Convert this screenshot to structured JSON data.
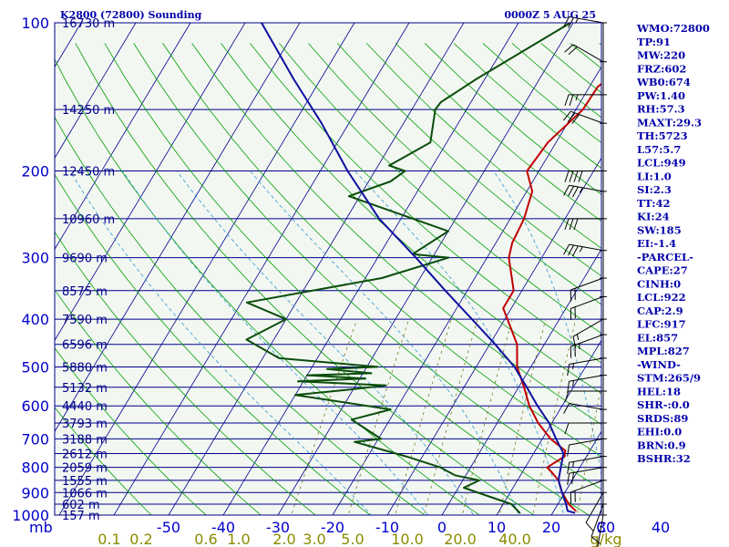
{
  "chart_data": {
    "type": "line",
    "title": "K2800 (72800) Sounding",
    "valid_time": "0000Z  5 AUG 25",
    "y_axis_unit": "mb",
    "pressure_ticks": [
      100,
      200,
      300,
      400,
      500,
      600,
      700,
      800,
      900,
      1000
    ],
    "temperature_ticks": [
      "-50",
      "-40",
      "-30",
      "-20",
      "-10",
      "0",
      "10",
      "20",
      "30",
      "40",
      "C"
    ],
    "mixing_ratio_labels": [
      "0.1",
      "0.2",
      "0.6",
      "1.0",
      "2.0",
      "3.0",
      "5.0",
      "10.0",
      "20.0",
      "40.0",
      "g/kg"
    ],
    "height_levels": [
      {
        "p": 100,
        "h": "16730 m"
      },
      {
        "p": 150,
        "h": "14250 m"
      },
      {
        "p": 200,
        "h": "12450 m"
      },
      {
        "p": 250,
        "h": "10960 m"
      },
      {
        "p": 300,
        "h": "9690 m"
      },
      {
        "p": 350,
        "h": "8575 m"
      },
      {
        "p": 400,
        "h": "7590 m"
      },
      {
        "p": 450,
        "h": "6596 m"
      },
      {
        "p": 500,
        "h": "5880 m"
      },
      {
        "p": 550,
        "h": "5132 m"
      },
      {
        "p": 600,
        "h": "4440 m"
      },
      {
        "p": 650,
        "h": "3793 m"
      },
      {
        "p": 700,
        "h": "3188 m"
      },
      {
        "p": 750,
        "h": "2612 m"
      },
      {
        "p": 800,
        "h": "2059 m"
      },
      {
        "p": 850,
        "h": "1555 m"
      },
      {
        "p": 900,
        "h": "1066 m"
      },
      {
        "p": 950,
        "h": "602 m"
      },
      {
        "p": 1000,
        "h": "157 m"
      }
    ],
    "series": [
      {
        "name": "Temperature",
        "color": "#c00000",
        "points": [
          [
            100,
            -9.5
          ],
          [
            105,
            -10.3
          ],
          [
            115,
            -13.0
          ],
          [
            125,
            -16.5
          ],
          [
            135,
            -18.5
          ],
          [
            150,
            -18.7
          ],
          [
            175,
            -21.5
          ],
          [
            200,
            -22.2
          ],
          [
            220,
            -19.0
          ],
          [
            250,
            -17.5
          ],
          [
            280,
            -17.0
          ],
          [
            300,
            -16.0
          ],
          [
            350,
            -11.5
          ],
          [
            380,
            -11.5
          ],
          [
            400,
            -9.5
          ],
          [
            450,
            -5.0
          ],
          [
            500,
            -2.5
          ],
          [
            550,
            1.0
          ],
          [
            600,
            4.0
          ],
          [
            650,
            7.5
          ],
          [
            700,
            11.5
          ],
          [
            740,
            15.5
          ],
          [
            760,
            16.0
          ],
          [
            800,
            14.0
          ],
          [
            820,
            15.5
          ],
          [
            850,
            17.5
          ],
          [
            900,
            19.5
          ],
          [
            950,
            22.0
          ],
          [
            980,
            24.0
          ]
        ]
      },
      {
        "name": "Dewpoint",
        "color": "#0b4d0b",
        "points": [
          [
            100,
            -30.5
          ],
          [
            130,
            -41.5
          ],
          [
            145,
            -45.5
          ],
          [
            150,
            -45.7
          ],
          [
            175,
            -43.0
          ],
          [
            195,
            -48.0
          ],
          [
            200,
            -44.5
          ],
          [
            210,
            -46.0
          ],
          [
            225,
            -52.0
          ],
          [
            265,
            -30.0
          ],
          [
            295,
            -34.0
          ],
          [
            300,
            -27.0
          ],
          [
            330,
            -37.0
          ],
          [
            370,
            -59.0
          ],
          [
            400,
            -50.0
          ],
          [
            440,
            -55.0
          ],
          [
            480,
            -47.0
          ],
          [
            500,
            -28.0
          ],
          [
            505,
            -37.0
          ],
          [
            515,
            -28.5
          ],
          [
            520,
            -40.0
          ],
          [
            528,
            -29.0
          ],
          [
            535,
            -41.0
          ],
          [
            545,
            -24.5
          ],
          [
            555,
            -30.0
          ],
          [
            570,
            -40.0
          ],
          [
            610,
            -21.0
          ],
          [
            640,
            -27.0
          ],
          [
            700,
            -19.5
          ],
          [
            710,
            -24.0
          ],
          [
            760,
            -13.0
          ],
          [
            800,
            -5.5
          ],
          [
            830,
            -2.0
          ],
          [
            850,
            3.0
          ],
          [
            880,
            1.0
          ],
          [
            950,
            11.5
          ],
          [
            990,
            14.0
          ]
        ]
      },
      {
        "name": "Parcel",
        "color": "#1010a0",
        "points": [
          [
            100,
            -87
          ],
          [
            130,
            -75
          ],
          [
            160,
            -65
          ],
          [
            200,
            -55
          ],
          [
            250,
            -44
          ],
          [
            300,
            -33
          ],
          [
            350,
            -24
          ],
          [
            400,
            -16
          ],
          [
            450,
            -9
          ],
          [
            500,
            -3
          ],
          [
            550,
            1.5
          ],
          [
            600,
            5.5
          ],
          [
            650,
            9.5
          ],
          [
            700,
            12.5
          ],
          [
            750,
            15.5
          ],
          [
            800,
            16.5
          ],
          [
            850,
            17.5
          ],
          [
            900,
            19.5
          ],
          [
            950,
            21.5
          ],
          [
            980,
            22.5
          ],
          [
            990,
            24.0
          ]
        ]
      }
    ],
    "wind_levels": [
      [
        100,
        280,
        25
      ],
      [
        120,
        300,
        20
      ],
      [
        140,
        270,
        25
      ],
      [
        160,
        290,
        30
      ],
      [
        200,
        270,
        40
      ],
      [
        220,
        280,
        35
      ],
      [
        250,
        270,
        30
      ],
      [
        290,
        280,
        35
      ],
      [
        330,
        250,
        20
      ],
      [
        360,
        250,
        20
      ],
      [
        400,
        240,
        15
      ],
      [
        430,
        250,
        25
      ],
      [
        480,
        260,
        15
      ],
      [
        520,
        260,
        15
      ],
      [
        560,
        270,
        10
      ],
      [
        610,
        280,
        10
      ],
      [
        650,
        270,
        10
      ],
      [
        700,
        260,
        10
      ],
      [
        760,
        260,
        15
      ],
      [
        800,
        260,
        20
      ],
      [
        850,
        250,
        20
      ],
      [
        900,
        210,
        10
      ],
      [
        950,
        200,
        10
      ],
      [
        1000,
        190,
        10
      ]
    ]
  },
  "indices": [
    "WMO:72800",
    "TP:91",
    "MW:220",
    "FRZ:602",
    "WB0:674",
    "PW:1.40",
    "RH:57.3",
    "MAXT:29.3",
    "TH:5723",
    "L57:5.7",
    "LCL:949",
    "LI:1.0",
    "SI:2.3",
    "TT:42",
    "KI:24",
    "SW:185",
    "EI:-1.4",
    "-PARCEL-",
    "CAPE:27",
    "CINH:0",
    "LCL:922",
    "CAP:2.9",
    "LFC:917",
    "EL:857",
    "MPL:827",
    "-WIND-",
    "STM:265/9",
    "HEL:18",
    "SHR-:0.0",
    "SRDS:89",
    "EHI:0.0",
    "BRN:0.9",
    "BSHR:32"
  ],
  "colors": {
    "isobar": "#00008b",
    "isotherm": "#00008b",
    "dry_adiabat": "#00a000",
    "moist_adiabat": "#3399cc",
    "mixing_ratio": "#7a7a20",
    "temperature": "#c00000",
    "dewpoint": "#0b4d0b",
    "parcel": "#1010a0",
    "background": "#f2f7f2"
  }
}
